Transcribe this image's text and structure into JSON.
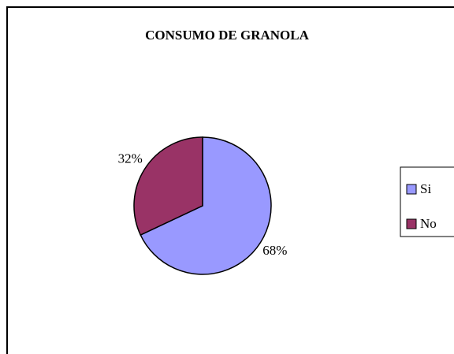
{
  "chart_data": {
    "type": "pie",
    "title": "CONSUMO DE GRANOLA",
    "categories": [
      "Si",
      "No"
    ],
    "values": [
      68,
      32
    ],
    "value_labels": [
      "68%",
      "32%"
    ],
    "colors": [
      "#9999ff",
      "#993366"
    ],
    "legend": "right"
  }
}
